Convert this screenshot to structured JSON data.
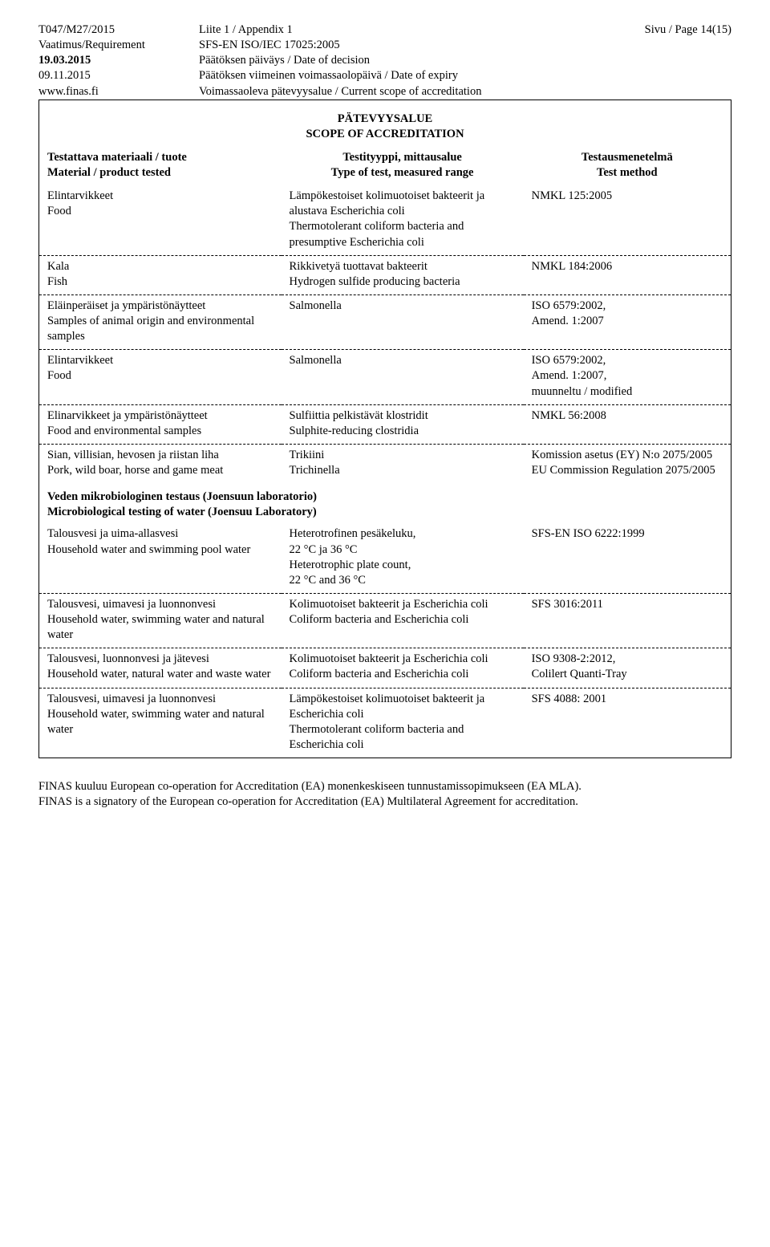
{
  "header": {
    "doc_id": "T047/M27/2015",
    "appendix": "Liite 1 / Appendix 1",
    "page": "Sivu / Page 14(15)",
    "req_label": "Vaatimus/Requirement",
    "req_value": "SFS-EN ISO/IEC 17025:2005",
    "date1_label": "19.03.2015",
    "date1_value": "Päätöksen päiväys / Date of decision",
    "date2_label": "09.11.2015",
    "date2_value": "Päätöksen viimeinen voimassaolopäivä / Date of expiry",
    "url": "www.finas.fi",
    "scope_label": "Voimassaoleva pätevyysalue / Current scope of accreditation"
  },
  "title": {
    "line1": "PÄTEVYYSALUE",
    "line2": "SCOPE OF ACCREDITATION"
  },
  "cols": {
    "c1a": "Testattava materiaali / tuote",
    "c1b": "Material / product tested",
    "c2a": "Testityyppi, mittausalue",
    "c2b": "Type of test, measured range",
    "c3a": "Testausmenetelmä",
    "c3b": "Test method"
  },
  "rows": [
    {
      "c1": "Elintarvikkeet\nFood",
      "c2": "Lämpökestoiset kolimuotoiset bakteerit ja alustava Escherichia coli\nThermotolerant coliform bacteria and presumptive Escherichia coli",
      "c3": "NMKL 125:2005"
    },
    {
      "c1": "Kala\nFish",
      "c2": "Rikkivetyä tuottavat bakteerit\nHydrogen sulfide producing bacteria",
      "c3": "NMKL 184:2006"
    },
    {
      "c1": "Eläinperäiset ja ympäristönäytteet\nSamples of animal origin and environmental samples",
      "c2": "Salmonella",
      "c3": "ISO 6579:2002,\nAmend. 1:2007"
    },
    {
      "c1": "Elintarvikkeet\nFood",
      "c2": "Salmonella",
      "c3": "ISO 6579:2002,\nAmend. 1:2007,\nmuunneltu / modified"
    },
    {
      "c1": "Elinarvikkeet ja ympäristönäytteet\nFood and environmental samples",
      "c2": "Sulfiittia pelkistävät klostridit\nSulphite-reducing clostridia",
      "c3": "NMKL 56:2008"
    },
    {
      "c1": "Sian, villisian, hevosen ja riistan liha\nPork, wild boar, horse and game meat",
      "c2": "Trikiini\nTrichinella",
      "c3": "Komission asetus (EY) N:o 2075/2005\nEU Commission Regulation 2075/2005"
    }
  ],
  "section": {
    "line1": "Veden mikrobiologinen testaus (Joensuun laboratorio)",
    "line2": "Microbiological testing of water (Joensuu Laboratory)"
  },
  "rows2": [
    {
      "c1": "Talousvesi ja uima-allasvesi\nHousehold water and swimming pool water",
      "c2": "Heterotrofinen pesäkeluku,\n22 °C ja 36 °C\nHeterotrophic plate count,\n22 °C and 36 °C",
      "c3": "SFS-EN ISO 6222:1999"
    },
    {
      "c1": "Talousvesi, uimavesi ja luonnonvesi\nHousehold water, swimming water and natural water",
      "c2": "Kolimuotoiset bakteerit ja Escherichia coli\nColiform bacteria and Escherichia coli",
      "c3": "SFS 3016:2011"
    },
    {
      "c1": "Talousvesi, luonnonvesi ja jätevesi\nHousehold water, natural water and waste water",
      "c2": "Kolimuotoiset bakteerit ja Escherichia coli\nColiform bacteria and Escherichia coli",
      "c3": "ISO 9308-2:2012,\nColilert Quanti-Tray"
    },
    {
      "c1": "Talousvesi, uimavesi ja luonnonvesi\nHousehold water, swimming water and natural water",
      "c2": "Lämpökestoiset kolimuotoiset bakteerit ja Escherichia coli\nThermotolerant coliform bacteria and Escherichia coli",
      "c3": "SFS 4088: 2001"
    }
  ],
  "footer": {
    "line1": "FINAS kuuluu European co-operation for Accreditation (EA) monenkeskiseen tunnustamissopimukseen (EA MLA).",
    "line2": "FINAS is a signatory of the European co-operation for Accreditation (EA) Multilateral Agreement for accreditation."
  }
}
